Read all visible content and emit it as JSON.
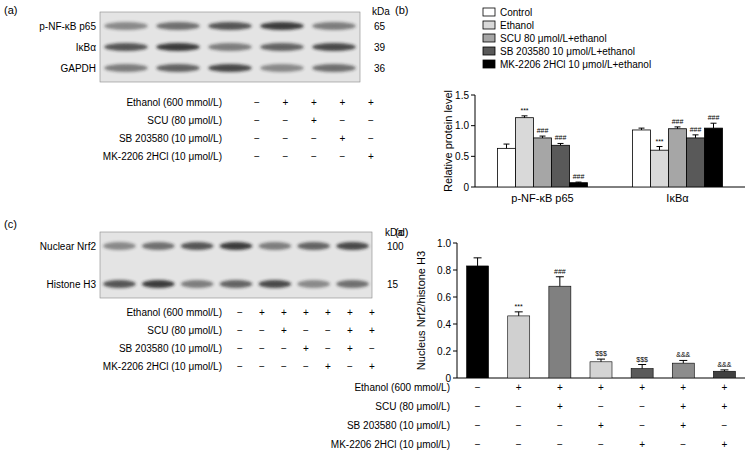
{
  "blots": [
    {
      "panel": "(a)",
      "kda_header": "kDa",
      "bands": [
        {
          "label": "p-NF-κB p65",
          "kda": 65
        },
        {
          "label": "IκBα",
          "kda": 39
        },
        {
          "label": "GAPDH",
          "kda": 36
        }
      ],
      "conditions": [
        {
          "label": "Ethanol (600 mmol/L)",
          "signs": [
            "−",
            "+",
            "+",
            "+",
            "+"
          ]
        },
        {
          "label": "SCU (80 μmol/L)",
          "signs": [
            "−",
            "−",
            "+",
            "−",
            "−"
          ]
        },
        {
          "label": "SB 203580 (10 μmol/L)",
          "signs": [
            "−",
            "−",
            "−",
            "+",
            "−"
          ]
        },
        {
          "label": "MK-2206 2HCl (10 μmol/L)",
          "signs": [
            "−",
            "−",
            "−",
            "−",
            "+"
          ]
        }
      ]
    },
    {
      "panel": "(c)",
      "kda_header": "kDa",
      "bands": [
        {
          "label": "Nuclear Nrf2",
          "kda": 100
        },
        {
          "label": "Histone H3",
          "kda": 15
        }
      ],
      "conditions": [
        {
          "label": "Ethanol (600 mmol/L)",
          "signs": [
            "−",
            "+",
            "+",
            "+",
            "+",
            "+",
            "+"
          ]
        },
        {
          "label": "SCU (80 μmol/L)",
          "signs": [
            "−",
            "−",
            "+",
            "−",
            "−",
            "+",
            "+"
          ]
        },
        {
          "label": "SB 203580 (10 μmol/L)",
          "signs": [
            "−",
            "−",
            "−",
            "+",
            "−",
            "+",
            "−"
          ]
        },
        {
          "label": "MK-2206 2HCl (10 μmol/L)",
          "signs": [
            "−",
            "−",
            "−",
            "−",
            "+",
            "−",
            "+"
          ]
        }
      ]
    }
  ],
  "chart_data": [
    {
      "panel": "(b)",
      "type": "bar",
      "categories": [
        "p-NF-κB p65",
        "IκBα"
      ],
      "y_label": "Relative protein level",
      "ylim": [
        0,
        1.5
      ],
      "yticks": [
        0,
        0.5,
        {
          "value": 1,
          "label": "1.0"
        },
        1.5
      ],
      "legend": "upper left",
      "series": [
        {
          "name": "Control",
          "color": "#ffffff",
          "values": [
            0.63,
            0.93
          ],
          "errors": [
            0.07,
            0.03
          ],
          "annotations": [
            null,
            null
          ]
        },
        {
          "name": "Ethanol",
          "color": "#d9d9d9",
          "values": [
            1.13,
            0.6
          ],
          "errors": [
            0.03,
            0.06
          ],
          "annotations": [
            "***",
            "***"
          ]
        },
        {
          "name": "SCU 80 μmol/L+ethanol",
          "color": "#a6a6a6",
          "values": [
            0.8,
            0.95
          ],
          "errors": [
            0.03,
            0.03
          ],
          "annotations": [
            "###",
            "###"
          ]
        },
        {
          "name": "SB 203580 10 μmol/L+ethanol",
          "color": "#595959",
          "values": [
            0.68,
            0.8
          ],
          "errors": [
            0.03,
            0.05
          ],
          "annotations": [
            "###",
            "###"
          ]
        },
        {
          "name": "MK-2206 2HCl 10 μmol/L+ethanol",
          "color": "#000000",
          "values": [
            0.07,
            0.96
          ],
          "errors": [
            0.01,
            0.08
          ],
          "annotations": [
            "###",
            "###"
          ]
        }
      ]
    },
    {
      "panel": "(d)",
      "type": "bar",
      "categories": [
        null,
        null,
        null,
        null,
        null,
        null,
        null
      ],
      "y_label": "Nucleus Nrf2/histone H3",
      "ylim": [
        0,
        1
      ],
      "yticks": [
        0,
        0.2,
        0.4,
        0.6,
        0.8,
        {
          "value": 1,
          "label": "1.0"
        }
      ],
      "values": [
        0.83,
        0.46,
        0.68,
        0.12,
        0.07,
        0.11,
        0.05
      ],
      "errors": [
        0.06,
        0.03,
        0.07,
        0.02,
        0.03,
        0.02,
        0.01
      ],
      "colors": [
        "#000000",
        "#d0d0d0",
        "#808080",
        "#d4d4d4",
        "#5a5a5a",
        "#8c8c8c",
        "#404040"
      ],
      "annotations": [
        null,
        "***",
        "###",
        "$$$",
        "$$$",
        "&&&",
        "&&&"
      ],
      "conditions": [
        {
          "label": "Ethanol (600 mmol/L)",
          "signs": [
            "−",
            "+",
            "+",
            "+",
            "+",
            "+",
            "+"
          ]
        },
        {
          "label": "SCU (80 μmol/L)",
          "signs": [
            "−",
            "−",
            "+",
            "−",
            "−",
            "+",
            "+"
          ]
        },
        {
          "label": "SB 203580 (10 μmol/L)",
          "signs": [
            "−",
            "−",
            "−",
            "+",
            "−",
            "+",
            "−"
          ]
        },
        {
          "label": "MK-2206 2HCl (10 μmol/L)",
          "signs": [
            "−",
            "−",
            "−",
            "−",
            "+",
            "−",
            "+"
          ]
        }
      ]
    }
  ]
}
